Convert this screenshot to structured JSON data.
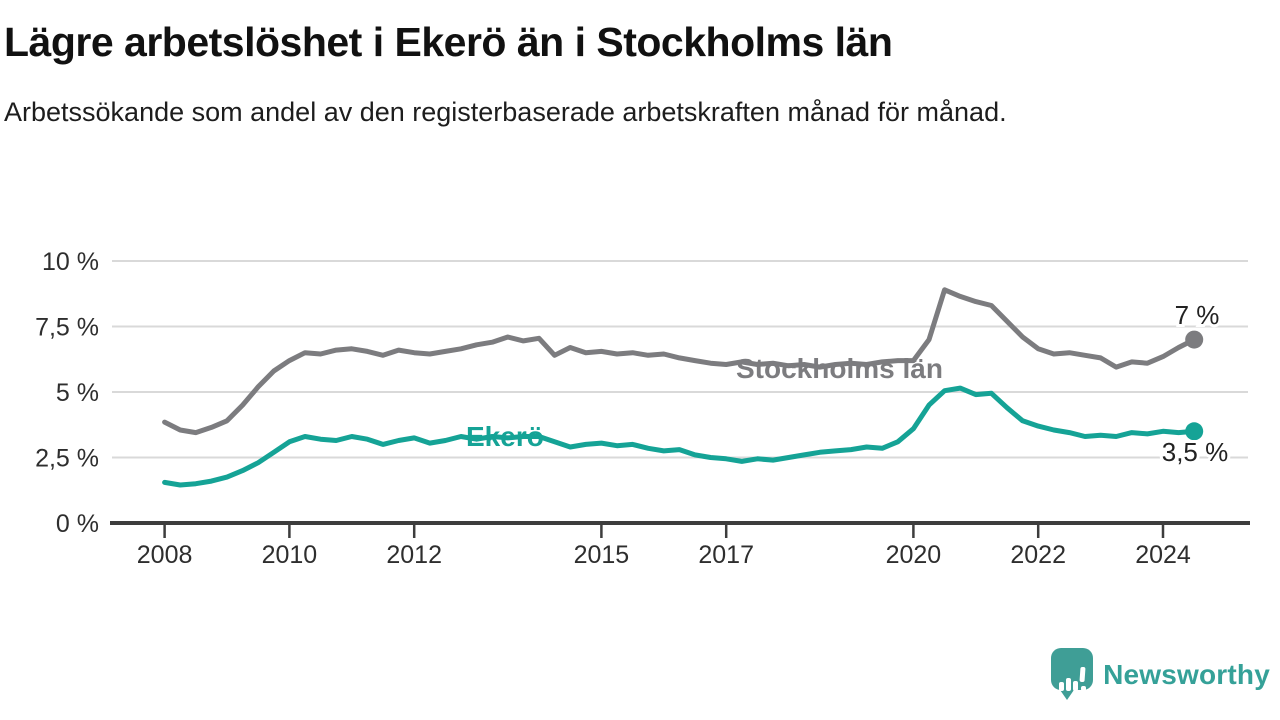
{
  "header": {
    "title": "Lägre arbetslöshet i Ekerö än i Stockholms län",
    "subtitle": "Arbetssökande som andel av den registerbaserade arbetskraften månad för månad."
  },
  "footer": {
    "brand": "Newsworthy",
    "logo_icon": "speech-bubble-bar-chart-icon"
  },
  "colors": {
    "ekero": "#15a396",
    "stockholm": "#7c7c7f",
    "grid": "#d9d9d9",
    "axis": "#3d3d3d",
    "tick_label": "#2e2e2e",
    "end_label": "#222222",
    "brand": "#35a198"
  },
  "chart_data": {
    "type": "line",
    "title": "Lägre arbetslöshet i Ekerö än i Stockholms län",
    "xlabel": "",
    "ylabel": "Arbetssökande som andel av den registerbaserade arbetskraften",
    "unit": "%",
    "grid": true,
    "legend": "inline-labels",
    "ylim": [
      0,
      10
    ],
    "xlim": [
      2007.9,
      2025.4
    ],
    "y_ticks": [
      {
        "value": 0,
        "label": "0 %"
      },
      {
        "value": 2.5,
        "label": "2,5 %"
      },
      {
        "value": 5,
        "label": "5 %"
      },
      {
        "value": 7.5,
        "label": "7,5 %"
      },
      {
        "value": 10,
        "label": "10 %"
      }
    ],
    "x_ticks": [
      {
        "value": 2008,
        "label": "2008"
      },
      {
        "value": 2010,
        "label": "2010"
      },
      {
        "value": 2012,
        "label": "2012"
      },
      {
        "value": 2015,
        "label": "2015"
      },
      {
        "value": 2017,
        "label": "2017"
      },
      {
        "value": 2020,
        "label": "2020"
      },
      {
        "value": 2022,
        "label": "2022"
      },
      {
        "value": 2024,
        "label": "2024"
      }
    ],
    "x": [
      2008,
      2008.25,
      2008.5,
      2008.75,
      2009,
      2009.25,
      2009.5,
      2009.75,
      2010,
      2010.25,
      2010.5,
      2010.75,
      2011,
      2011.25,
      2011.5,
      2011.75,
      2012,
      2012.25,
      2012.5,
      2012.75,
      2013,
      2013.25,
      2013.5,
      2013.75,
      2014,
      2014.25,
      2014.5,
      2014.75,
      2015,
      2015.25,
      2015.5,
      2015.75,
      2016,
      2016.25,
      2016.5,
      2016.75,
      2017,
      2017.25,
      2017.5,
      2017.75,
      2018,
      2018.25,
      2018.5,
      2018.75,
      2019,
      2019.25,
      2019.5,
      2019.75,
      2020,
      2020.25,
      2020.5,
      2020.75,
      2021,
      2021.25,
      2021.5,
      2021.75,
      2022,
      2022.25,
      2022.5,
      2022.75,
      2023,
      2023.25,
      2023.5,
      2023.75,
      2024,
      2024.25,
      2024.5
    ],
    "series": [
      {
        "name": "Stockholms län",
        "color_key": "stockholm",
        "end_label": "7 %",
        "end_value": 7.0,
        "values": [
          3.85,
          3.55,
          3.45,
          3.65,
          3.9,
          4.5,
          5.2,
          5.8,
          6.2,
          6.5,
          6.45,
          6.6,
          6.65,
          6.55,
          6.4,
          6.6,
          6.5,
          6.45,
          6.55,
          6.65,
          6.8,
          6.9,
          7.1,
          6.95,
          7.05,
          6.4,
          6.7,
          6.5,
          6.55,
          6.45,
          6.5,
          6.4,
          6.45,
          6.3,
          6.2,
          6.1,
          6.05,
          6.15,
          6.05,
          6.1,
          6.0,
          6.05,
          5.95,
          6.05,
          6.1,
          6.05,
          6.15,
          6.2,
          6.2,
          7.0,
          8.9,
          8.65,
          8.45,
          8.3,
          7.7,
          7.1,
          6.65,
          6.45,
          6.5,
          6.4,
          6.3,
          5.95,
          6.15,
          6.1,
          6.35,
          6.7,
          7.0
        ]
      },
      {
        "name": "Ekerö",
        "color_key": "ekero",
        "end_label": "3,5 %",
        "end_value": 3.5,
        "values": [
          1.55,
          1.45,
          1.5,
          1.6,
          1.75,
          2.0,
          2.3,
          2.7,
          3.1,
          3.3,
          3.2,
          3.15,
          3.3,
          3.2,
          3.0,
          3.15,
          3.25,
          3.05,
          3.15,
          3.3,
          3.2,
          3.3,
          3.25,
          3.3,
          3.3,
          3.1,
          2.9,
          3.0,
          3.05,
          2.95,
          3.0,
          2.85,
          2.75,
          2.8,
          2.6,
          2.5,
          2.45,
          2.35,
          2.45,
          2.4,
          2.5,
          2.6,
          2.7,
          2.75,
          2.8,
          2.9,
          2.85,
          3.1,
          3.6,
          4.5,
          5.05,
          5.15,
          4.9,
          4.95,
          4.4,
          3.9,
          3.7,
          3.55,
          3.45,
          3.3,
          3.35,
          3.3,
          3.45,
          3.4,
          3.5,
          3.45,
          3.5
        ]
      }
    ]
  }
}
